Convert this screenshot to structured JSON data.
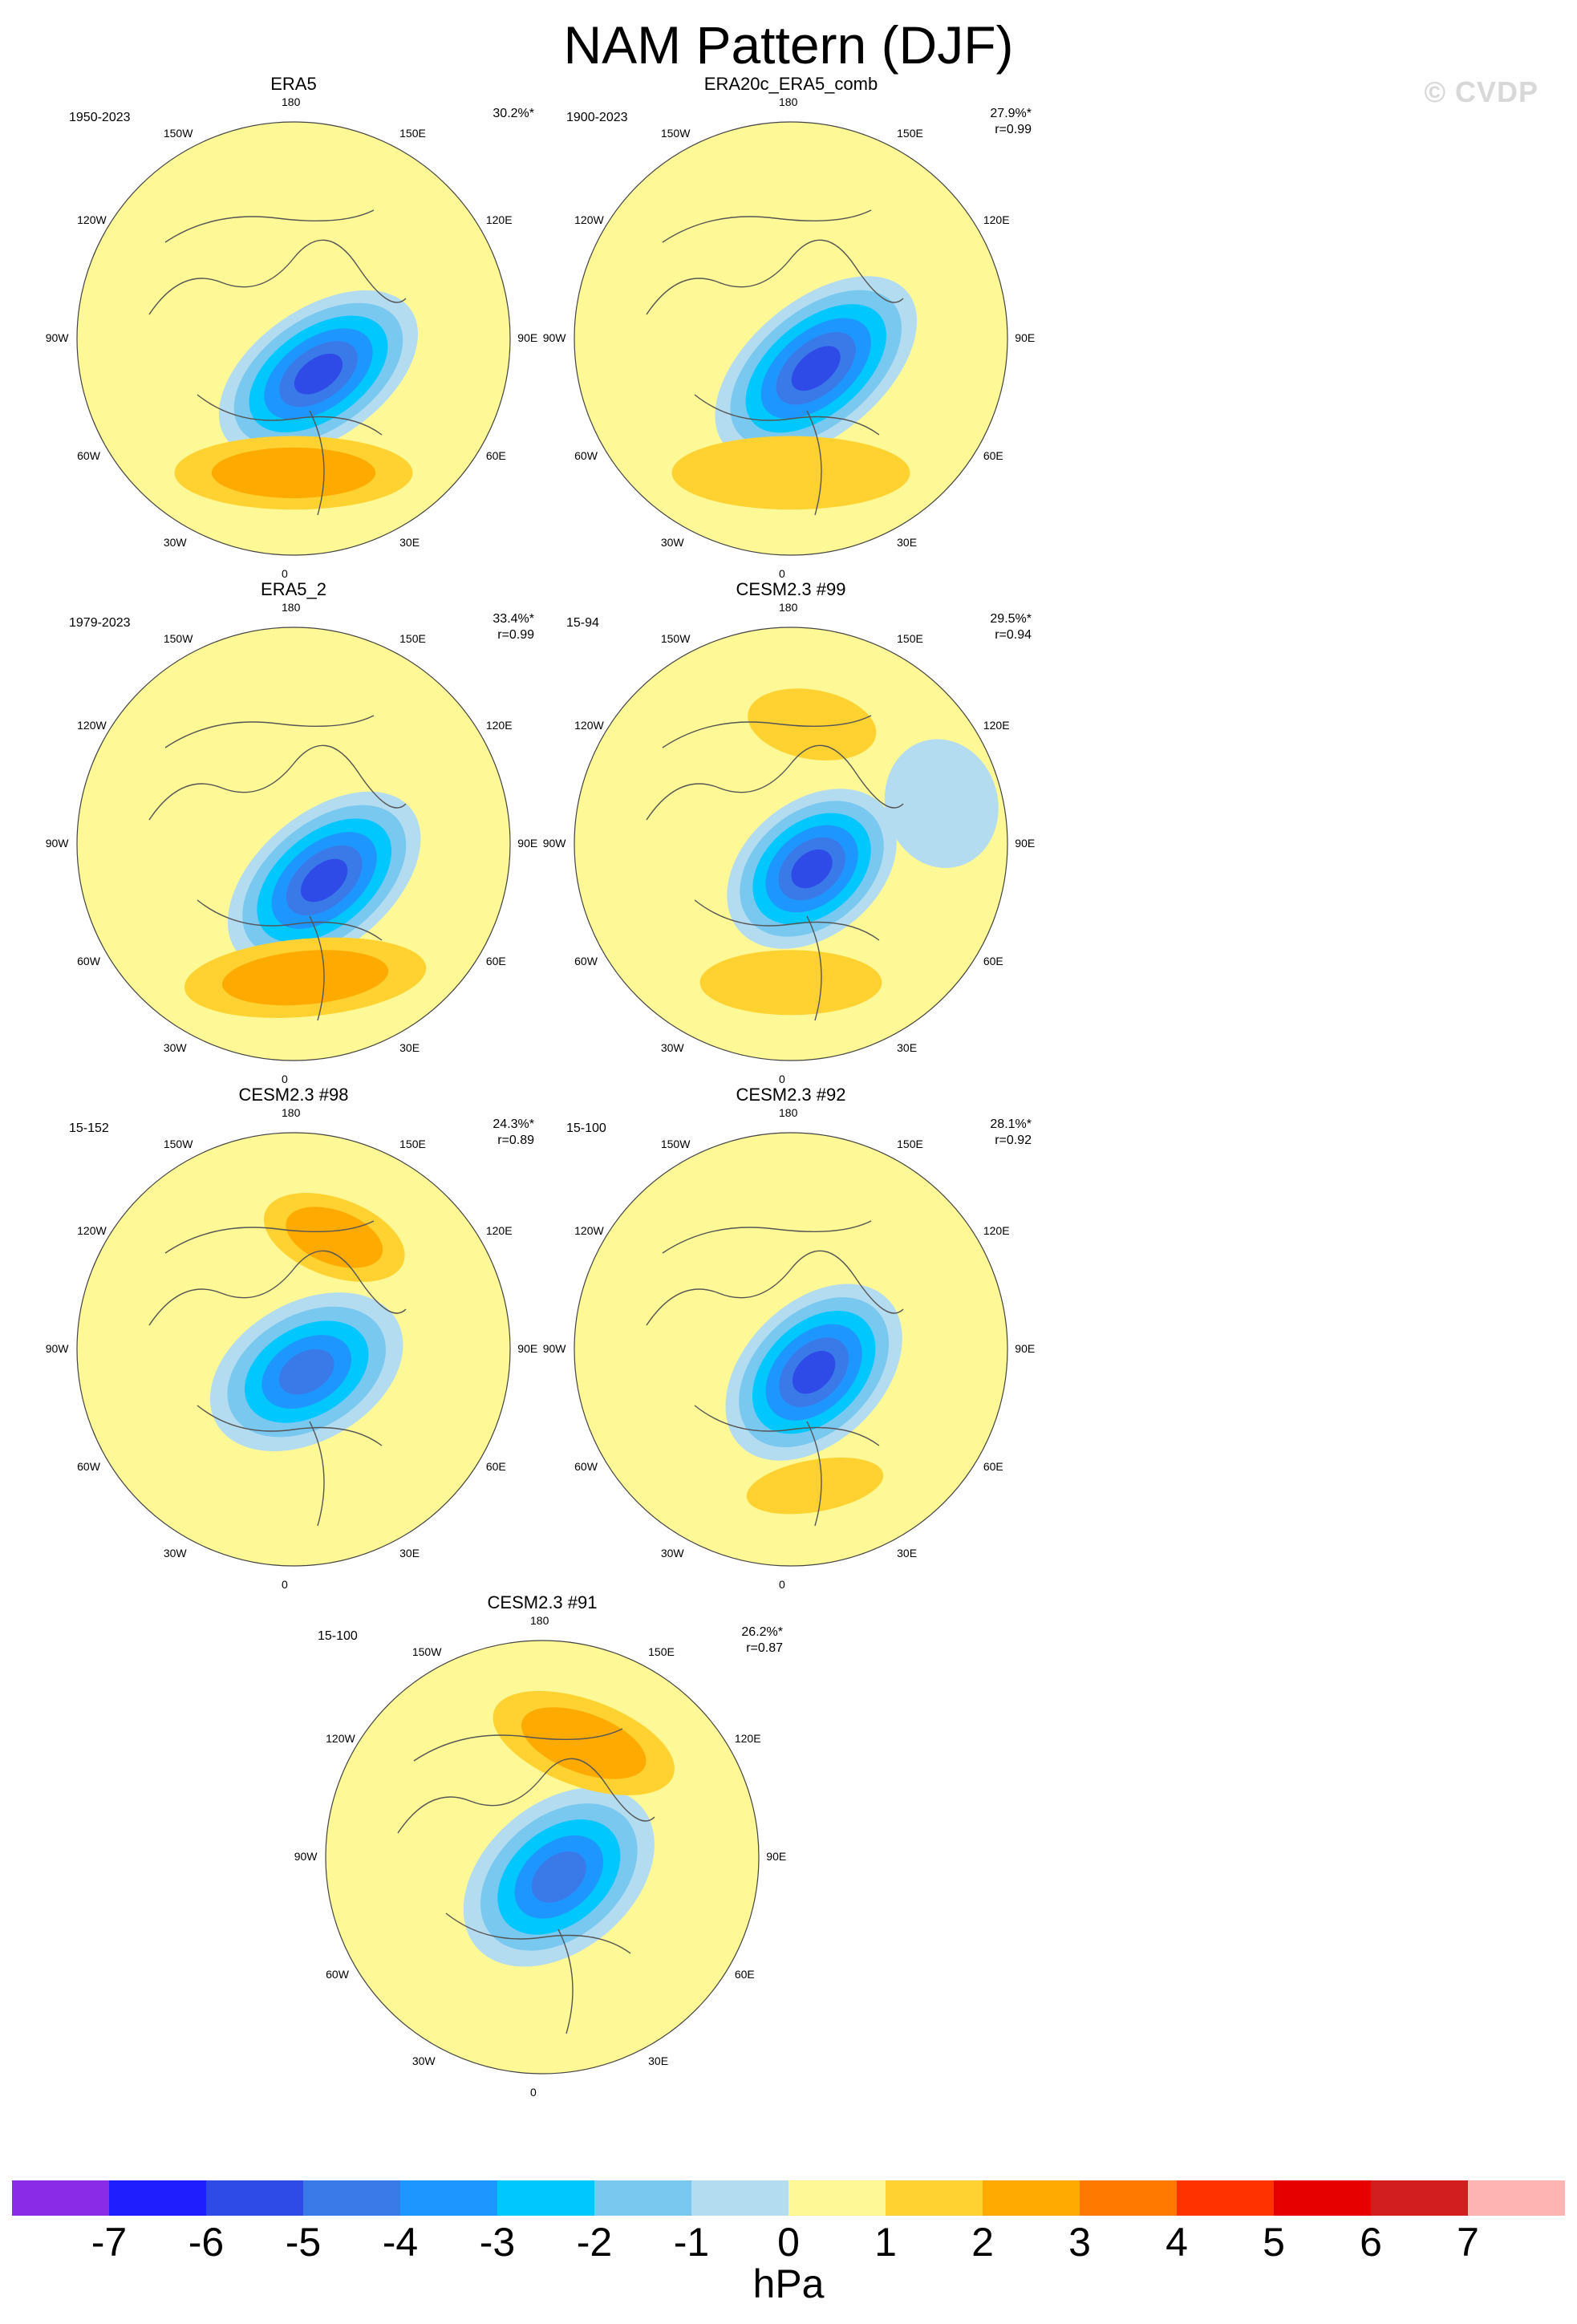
{
  "title": "NAM Pattern (DJF)",
  "watermark": "© CVDP",
  "chart_data": {
    "type": "heatmap",
    "projection": "north-polar-stereographic",
    "variable": "NAM pattern (sea level pressure regression)",
    "season": "DJF",
    "units": "hPa",
    "colorbar": {
      "ticks": [
        "-7",
        "-6",
        "-5",
        "-4",
        "-3",
        "-2",
        "-1",
        "0",
        "1",
        "2",
        "3",
        "4",
        "5",
        "6",
        "7"
      ],
      "colors": [
        "#8a2be8",
        "#1e1eff",
        "#2e4be8",
        "#3a7ae8",
        "#1e96ff",
        "#00c8ff",
        "#78c8f0",
        "#b4dcf0",
        "#fff896",
        "#ffd232",
        "#ffaa00",
        "#ff7800",
        "#ff3200",
        "#e60000",
        "#d21e1e",
        "#ffb4b4"
      ]
    },
    "longitude_labels": [
      "180",
      "150E",
      "120E",
      "90E",
      "60E",
      "30E",
      "0",
      "30W",
      "60W",
      "90W",
      "120W",
      "150W"
    ],
    "panels": [
      {
        "name": "ERA5",
        "period": "1950-2023",
        "pct_variance": "30.2%*",
        "r": "",
        "features": [
          {
            "kind": "low",
            "lon": 35,
            "rel_r": 0.2,
            "rx": 0.52,
            "ry": 0.3,
            "min_level": -6
          },
          {
            "kind": "high",
            "lon": 0,
            "rel_r": 0.62,
            "rx": 0.55,
            "ry": 0.17,
            "max_level": 3
          },
          {
            "kind": "high",
            "lon": 160,
            "rel_r": 0.6,
            "rx": 0.32,
            "ry": 0.13,
            "max_level": 1
          }
        ]
      },
      {
        "name": "ERA20c_ERA5_comb",
        "period": "1900-2023",
        "pct_variance": "27.9%*",
        "r": "r=0.99",
        "features": [
          {
            "kind": "low",
            "lon": 40,
            "rel_r": 0.18,
            "rx": 0.55,
            "ry": 0.31,
            "min_level": -6
          },
          {
            "kind": "high",
            "lon": 0,
            "rel_r": 0.62,
            "rx": 0.55,
            "ry": 0.17,
            "max_level": 2
          },
          {
            "kind": "high",
            "lon": 165,
            "rel_r": 0.6,
            "rx": 0.3,
            "ry": 0.12,
            "max_level": 1
          }
        ]
      },
      {
        "name": "ERA5_2",
        "period": "1979-2023",
        "pct_variance": "33.4%*",
        "r": "r=0.99",
        "features": [
          {
            "kind": "low",
            "lon": 40,
            "rel_r": 0.22,
            "rx": 0.52,
            "ry": 0.31,
            "min_level": -6
          },
          {
            "kind": "high",
            "lon": 5,
            "rel_r": 0.62,
            "rx": 0.56,
            "ry": 0.18,
            "max_level": 3
          },
          {
            "kind": "high",
            "lon": 165,
            "rel_r": 0.58,
            "rx": 0.22,
            "ry": 0.12,
            "max_level": 1
          }
        ]
      },
      {
        "name": "CESM2.3 #99",
        "period": "15-94",
        "pct_variance": "29.5%*",
        "r": "r=0.94",
        "features": [
          {
            "kind": "low",
            "lon": 40,
            "rel_r": 0.15,
            "rx": 0.44,
            "ry": 0.31,
            "min_level": -6
          },
          {
            "kind": "high",
            "lon": 0,
            "rel_r": 0.64,
            "rx": 0.42,
            "ry": 0.15,
            "max_level": 2
          },
          {
            "kind": "high",
            "lon": 170,
            "rel_r": 0.56,
            "rx": 0.3,
            "ry": 0.16,
            "max_level": 2
          },
          {
            "kind": "low",
            "lon": 105,
            "rel_r": 0.72,
            "rx": 0.3,
            "ry": 0.26,
            "min_level": -1
          }
        ]
      },
      {
        "name": "CESM2.3 #98",
        "period": "15-152",
        "pct_variance": "24.3%*",
        "r": "r=0.89",
        "features": [
          {
            "kind": "low",
            "lon": 30,
            "rel_r": 0.12,
            "rx": 0.48,
            "ry": 0.32,
            "min_level": -5
          },
          {
            "kind": "high",
            "lon": 10,
            "rel_r": 0.64,
            "rx": 0.3,
            "ry": 0.1,
            "max_level": 1
          },
          {
            "kind": "high",
            "lon": 160,
            "rel_r": 0.55,
            "rx": 0.34,
            "ry": 0.18,
            "max_level": 3
          }
        ]
      },
      {
        "name": "CESM2.3 #92",
        "period": "15-100",
        "pct_variance": "28.1%*",
        "r": "r=0.92",
        "features": [
          {
            "kind": "low",
            "lon": 45,
            "rel_r": 0.15,
            "rx": 0.48,
            "ry": 0.32,
            "min_level": -6
          },
          {
            "kind": "high",
            "lon": 10,
            "rel_r": 0.64,
            "rx": 0.32,
            "ry": 0.12,
            "max_level": 2
          },
          {
            "kind": "high",
            "lon": 170,
            "rel_r": 0.56,
            "rx": 0.42,
            "ry": 0.16,
            "max_level": 1
          }
        ]
      },
      {
        "name": "CESM2.3 #91",
        "period": "15-100",
        "pct_variance": "26.2%*",
        "r": "r=0.87",
        "features": [
          {
            "kind": "low",
            "lon": 40,
            "rel_r": 0.12,
            "rx": 0.5,
            "ry": 0.34,
            "min_level": -5
          },
          {
            "kind": "high",
            "lon": 10,
            "rel_r": 0.64,
            "rx": 0.34,
            "ry": 0.11,
            "max_level": 1
          },
          {
            "kind": "high",
            "lon": 160,
            "rel_r": 0.56,
            "rx": 0.44,
            "ry": 0.2,
            "max_level": 3
          }
        ]
      }
    ]
  }
}
